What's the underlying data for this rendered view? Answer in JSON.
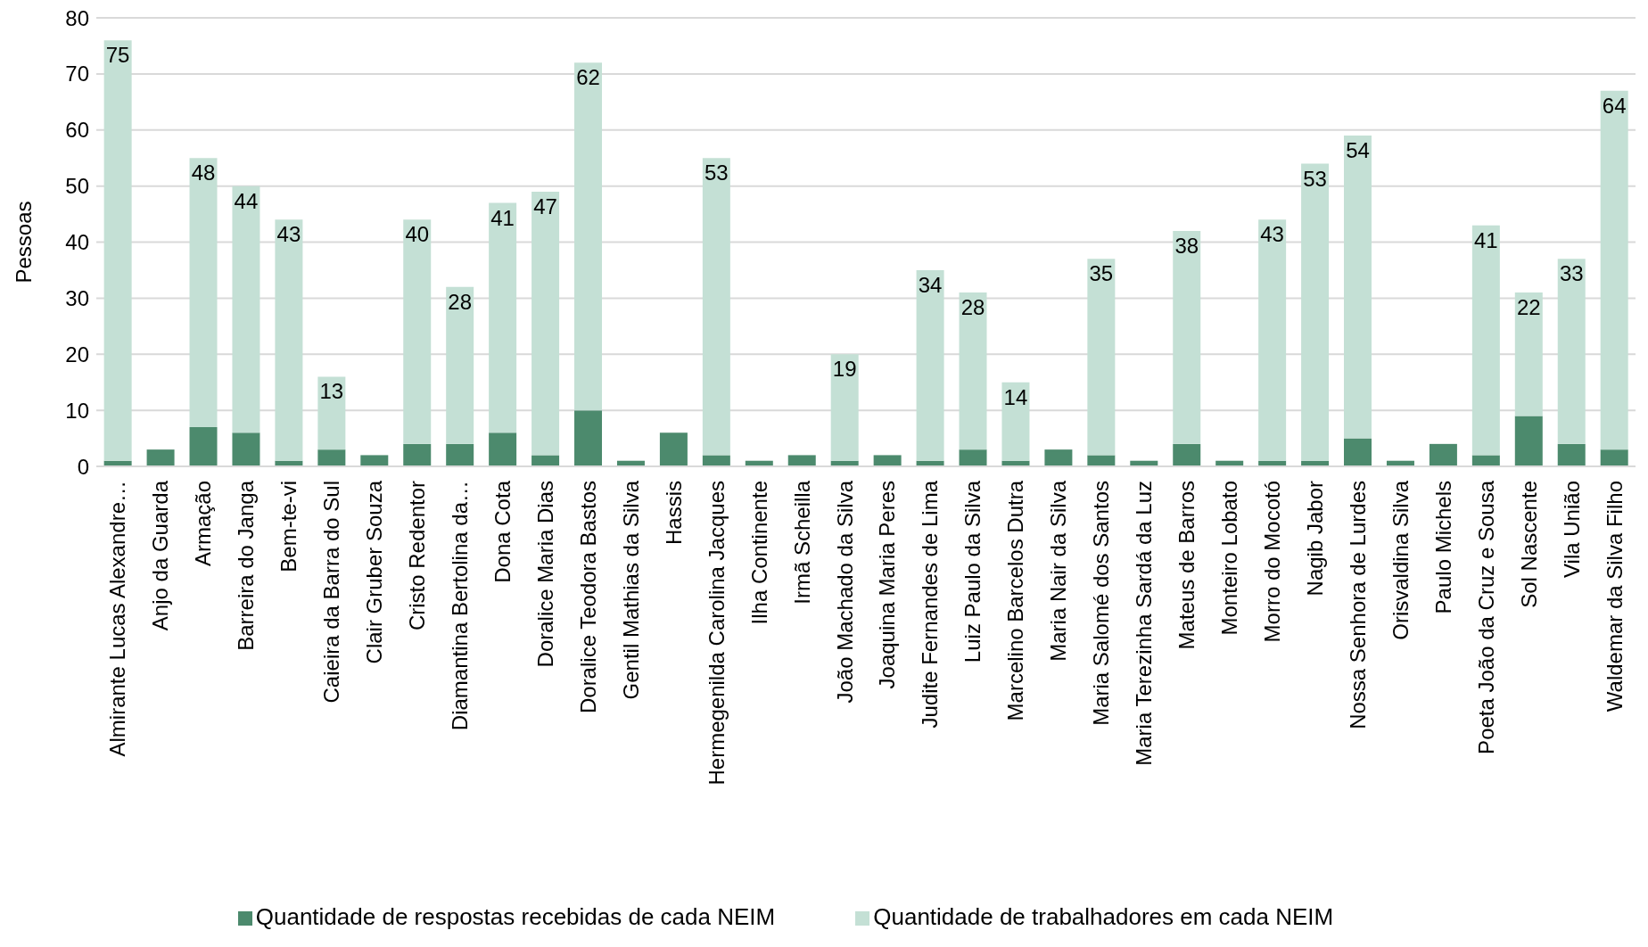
{
  "chart_data": {
    "type": "bar",
    "stacked": true,
    "ylabel": "Pessoas",
    "categories": [
      "Almirante Lucas Alexandre…",
      "Anjo da Guarda",
      "Armação",
      "Barreira do Janga",
      "Bem-te-vi",
      "Caieira da Barra do Sul",
      "Clair Gruber Souza",
      "Cristo Redentor",
      "Diamantina Bertolina da…",
      "Dona Cota",
      "Doralice Maria Dias",
      "Doralice Teodora Bastos",
      "Gentil Mathias da Silva",
      "Hassis",
      "Hermegenilda Carolina Jacques",
      "Ilha Continente",
      "Irmã Scheilla",
      "João Machado da Silva",
      "Joaquina Maria Peres",
      "Judite Fernandes de Lima",
      "Luiz Paulo da Silva",
      "Marcelino Barcelos Dutra",
      "Maria Nair da Silva",
      "Maria Salomé dos Santos",
      "Maria Terezinha Sardá da Luz",
      "Mateus de Barros",
      "Monteiro Lobato",
      "Morro do Mocotó",
      "Nagib Jabor",
      "Nossa Senhora de Lurdes",
      "Orisvaldina Silva",
      "Paulo Michels",
      "Poeta João da Cruz e Sousa",
      "Sol Nascente",
      "Vila União",
      "Waldemar da Silva Filho"
    ],
    "series": [
      {
        "name": "Quantidade de respostas recebidas de cada NEIM",
        "color": "#4c8a6d",
        "values": [
          1,
          3,
          7,
          6,
          1,
          3,
          2,
          4,
          4,
          6,
          2,
          10,
          1,
          6,
          2,
          1,
          2,
          1,
          2,
          1,
          3,
          1,
          3,
          2,
          1,
          4,
          1,
          1,
          1,
          5,
          1,
          4,
          2,
          9,
          4,
          3
        ]
      },
      {
        "name": "Quantidade de trabalhadores em cada NEIM",
        "color": "#c4e0d5",
        "values": [
          75,
          null,
          48,
          44,
          43,
          13,
          null,
          40,
          28,
          41,
          47,
          62,
          null,
          null,
          53,
          null,
          null,
          19,
          null,
          34,
          28,
          14,
          null,
          35,
          null,
          38,
          null,
          43,
          53,
          54,
          null,
          null,
          41,
          22,
          33,
          64
        ],
        "data_labels": true
      }
    ],
    "ylim": [
      0,
      80
    ],
    "yticks": [
      0,
      10,
      20,
      30,
      40,
      50,
      60,
      70,
      80
    ],
    "grid": "y",
    "legend": "bottom"
  }
}
